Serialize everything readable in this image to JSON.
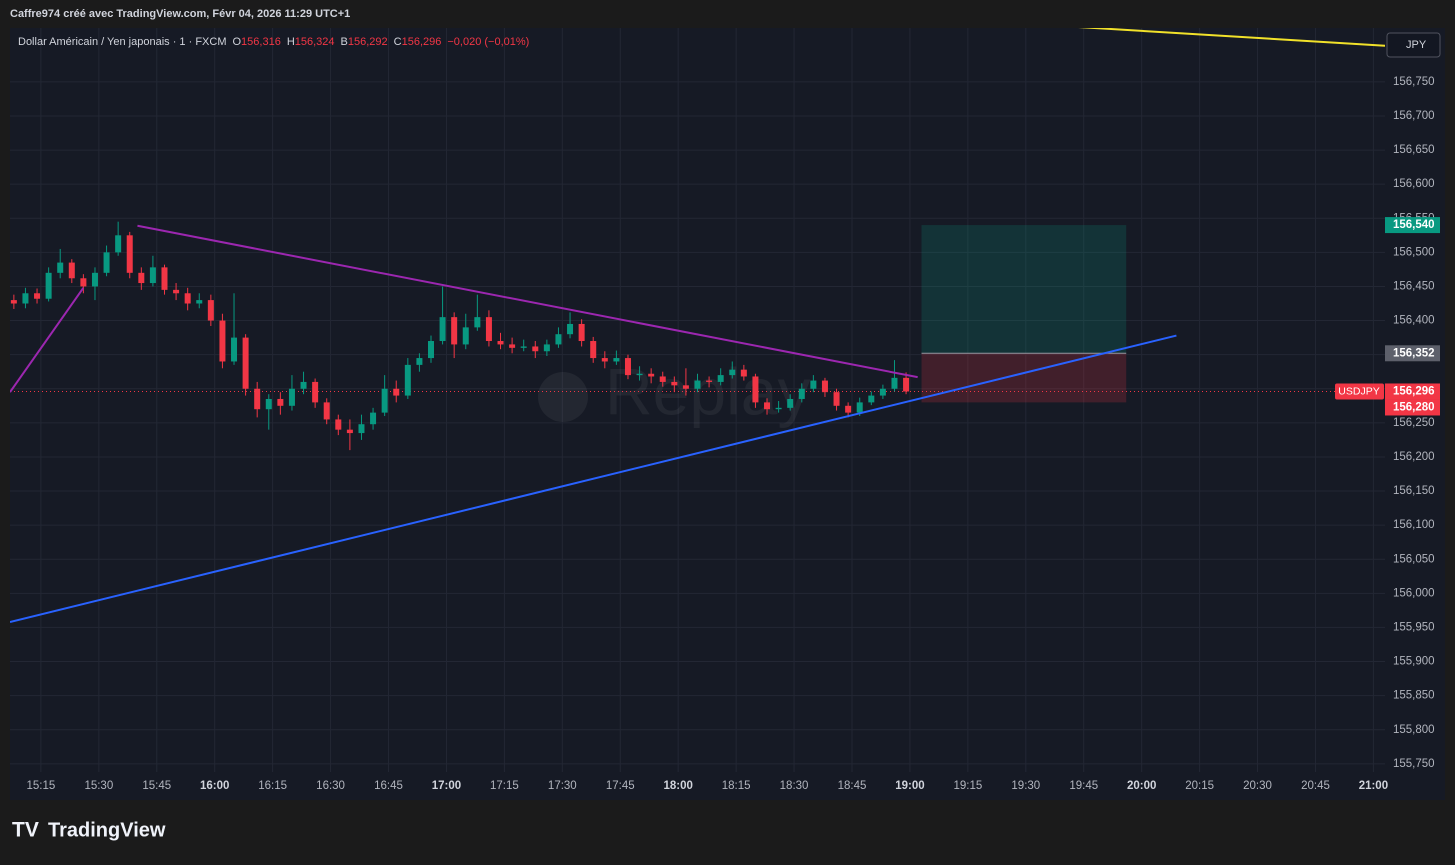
{
  "header": {
    "author_line": "Caffre974 créé avec TradingView.com, Févr 04, 2026 11:29 UTC+1",
    "symbol_line": "Dollar Américain / Yen japonais · 1 · FXCM",
    "ohlc": [
      [
        "O",
        "156,316"
      ],
      [
        "H",
        "156,324"
      ],
      [
        "B",
        "156,292"
      ],
      [
        "C",
        "156,296"
      ]
    ],
    "change": "−0,020 (−0,01%)",
    "currency_button": "JPY",
    "brand": "TradingView",
    "watermark": "Replay"
  },
  "chart_data": {
    "type": "candlestick",
    "symbol": "USDJPY",
    "up_color": "#089981",
    "down_color": "#f23645",
    "grid": true,
    "xlim": [
      "15:07",
      "21:03"
    ],
    "ylim": [
      155.738,
      156.829
    ],
    "xticks": [
      "15:15",
      "15:30",
      "15:45",
      "16:00",
      "16:15",
      "16:30",
      "16:45",
      "17:00",
      "17:15",
      "17:30",
      "17:45",
      "18:00",
      "18:15",
      "18:30",
      "18:45",
      "19:00",
      "19:15",
      "19:30",
      "19:45",
      "20:00",
      "20:15",
      "20:30",
      "20:45",
      "21:00"
    ],
    "yticks": [
      {
        "value": 155.75,
        "label": "155,750"
      },
      {
        "value": 155.8,
        "label": "155,800"
      },
      {
        "value": 155.85,
        "label": "155,850"
      },
      {
        "value": 155.9,
        "label": "155,900"
      },
      {
        "value": 155.95,
        "label": "155,950"
      },
      {
        "value": 156.0,
        "label": "156,000"
      },
      {
        "value": 156.05,
        "label": "156,050"
      },
      {
        "value": 156.1,
        "label": "156,100"
      },
      {
        "value": 156.15,
        "label": "156,150"
      },
      {
        "value": 156.2,
        "label": "156,200"
      },
      {
        "value": 156.25,
        "label": "156,250"
      },
      {
        "value": 156.3,
        "label": "156,300"
      },
      {
        "value": 156.35,
        "label": "156,350"
      },
      {
        "value": 156.4,
        "label": "156,400"
      },
      {
        "value": 156.45,
        "label": "156,450"
      },
      {
        "value": 156.5,
        "label": "156,500"
      },
      {
        "value": 156.55,
        "label": "156,550"
      },
      {
        "value": 156.6,
        "label": "156,600"
      },
      {
        "value": 156.65,
        "label": "156,650"
      },
      {
        "value": 156.7,
        "label": "156,700"
      },
      {
        "value": 156.75,
        "label": "156,750"
      }
    ],
    "candles": {
      "x": [
        "15:08",
        "15:11",
        "15:14",
        "15:17",
        "15:20",
        "15:23",
        "15:26",
        "15:29",
        "15:32",
        "15:35",
        "15:38",
        "15:41",
        "15:44",
        "15:47",
        "15:50",
        "15:53",
        "15:56",
        "15:59",
        "16:02",
        "16:05",
        "16:08",
        "16:11",
        "16:14",
        "16:17",
        "16:20",
        "16:23",
        "16:26",
        "16:29",
        "16:32",
        "16:35",
        "16:38",
        "16:41",
        "16:44",
        "16:47",
        "16:50",
        "16:53",
        "16:56",
        "16:59",
        "17:02",
        "17:05",
        "17:08",
        "17:11",
        "17:14",
        "17:17",
        "17:20",
        "17:23",
        "17:26",
        "17:29",
        "17:32",
        "17:35",
        "17:38",
        "17:41",
        "17:44",
        "17:47",
        "17:50",
        "17:53",
        "17:56",
        "17:59",
        "18:02",
        "18:05",
        "18:08",
        "18:11",
        "18:14",
        "18:17",
        "18:20",
        "18:23",
        "18:26",
        "18:29",
        "18:32",
        "18:35",
        "18:38",
        "18:41",
        "18:44",
        "18:47",
        "18:50",
        "18:53",
        "18:56",
        "18:59"
      ],
      "open": [
        156.43,
        156.425,
        156.44,
        156.432,
        156.47,
        156.485,
        156.462,
        156.45,
        156.47,
        156.5,
        156.525,
        156.47,
        156.455,
        156.478,
        156.445,
        156.44,
        156.425,
        156.43,
        156.4,
        156.34,
        156.375,
        156.3,
        156.27,
        156.285,
        156.275,
        156.3,
        156.31,
        156.28,
        156.255,
        156.24,
        156.235,
        156.248,
        156.265,
        156.3,
        156.29,
        156.335,
        156.345,
        156.37,
        156.405,
        156.365,
        156.39,
        156.405,
        156.37,
        156.365,
        156.36,
        156.362,
        156.355,
        156.365,
        156.38,
        156.395,
        156.37,
        156.345,
        156.34,
        156.345,
        156.32,
        156.322,
        156.318,
        156.31,
        156.305,
        156.3,
        156.312,
        156.31,
        156.32,
        156.328,
        156.318,
        156.28,
        156.27,
        156.272,
        156.285,
        156.3,
        156.312,
        156.295,
        156.275,
        156.265,
        156.28,
        156.29,
        156.3,
        156.316
      ],
      "high": [
        156.438,
        156.448,
        156.447,
        156.478,
        156.505,
        156.49,
        156.468,
        156.478,
        156.51,
        156.545,
        156.53,
        156.478,
        156.495,
        156.482,
        156.455,
        156.448,
        156.44,
        156.438,
        156.41,
        156.44,
        156.38,
        156.31,
        156.292,
        156.295,
        156.32,
        156.325,
        156.315,
        156.286,
        156.262,
        156.255,
        156.262,
        156.272,
        156.32,
        156.312,
        156.345,
        156.352,
        156.378,
        156.45,
        156.412,
        156.41,
        156.438,
        156.415,
        156.382,
        156.375,
        156.372,
        156.37,
        156.372,
        156.39,
        156.412,
        156.402,
        156.376,
        156.355,
        156.356,
        156.35,
        156.333,
        156.33,
        156.325,
        156.318,
        156.33,
        156.322,
        156.318,
        156.33,
        156.34,
        156.335,
        156.322,
        156.286,
        156.282,
        156.292,
        156.308,
        156.32,
        156.316,
        156.3,
        156.28,
        156.287,
        156.296,
        156.306,
        156.342,
        156.324
      ],
      "low": [
        156.417,
        156.418,
        156.425,
        156.428,
        156.462,
        156.455,
        156.44,
        156.43,
        156.465,
        156.495,
        156.462,
        156.445,
        156.45,
        156.438,
        156.43,
        156.415,
        156.418,
        156.392,
        156.33,
        156.335,
        156.29,
        156.258,
        156.24,
        156.262,
        156.268,
        156.292,
        156.272,
        156.248,
        156.232,
        156.21,
        156.225,
        156.24,
        156.26,
        156.28,
        156.285,
        156.325,
        156.338,
        156.365,
        156.345,
        156.358,
        156.385,
        156.362,
        156.358,
        156.352,
        156.355,
        156.345,
        156.348,
        156.36,
        156.374,
        156.362,
        156.338,
        156.33,
        156.335,
        156.314,
        156.312,
        156.308,
        156.303,
        156.295,
        156.29,
        156.295,
        156.302,
        156.305,
        156.315,
        156.312,
        156.272,
        156.262,
        156.265,
        156.268,
        156.28,
        156.295,
        156.288,
        156.268,
        156.258,
        156.26,
        156.276,
        156.285,
        156.296,
        156.292
      ],
      "close": [
        156.425,
        156.44,
        156.432,
        156.47,
        156.485,
        156.462,
        156.45,
        156.47,
        156.5,
        156.525,
        156.47,
        156.455,
        156.478,
        156.445,
        156.44,
        156.425,
        156.43,
        156.4,
        156.34,
        156.375,
        156.3,
        156.27,
        156.285,
        156.275,
        156.3,
        156.31,
        156.28,
        156.255,
        156.24,
        156.235,
        156.248,
        156.265,
        156.3,
        156.29,
        156.335,
        156.345,
        156.37,
        156.405,
        156.365,
        156.39,
        156.405,
        156.37,
        156.365,
        156.36,
        156.362,
        156.355,
        156.365,
        156.38,
        156.395,
        156.37,
        156.345,
        156.34,
        156.345,
        156.32,
        156.322,
        156.318,
        156.31,
        156.305,
        156.3,
        156.312,
        156.31,
        156.32,
        156.328,
        156.318,
        156.28,
        156.27,
        156.272,
        156.285,
        156.3,
        156.312,
        156.295,
        156.275,
        156.265,
        156.28,
        156.29,
        156.3,
        156.316,
        156.296
      ]
    },
    "last_price": {
      "value": 156.296,
      "label": "156,296",
      "color": "#f23645"
    },
    "position": {
      "x": [
        "19:03",
        "19:56"
      ],
      "take_profit": {
        "value": 156.54,
        "label": "156,540",
        "color": "#089981"
      },
      "entry": {
        "value": 156.352,
        "label": "156,352",
        "color": "#5d606b"
      },
      "stop": {
        "value": 156.28,
        "label": "156,280",
        "color": "#f23645"
      }
    },
    "drawings": [
      {
        "color": "#9c27b0",
        "x": [
          "15:07",
          "15:26"
        ],
        "y": [
          156.295,
          156.448
        ]
      },
      {
        "color": "#9c27b0",
        "x": [
          "15:40",
          "19:02"
        ],
        "y": [
          156.539,
          156.317
        ]
      },
      {
        "color": "#2962ff",
        "x": [
          "15:07",
          "20:09"
        ],
        "y": [
          155.958,
          156.378
        ]
      },
      {
        "color": "#f2e22a",
        "x": [
          "19:42",
          "21:03"
        ],
        "y": [
          156.831,
          156.803
        ]
      }
    ]
  }
}
